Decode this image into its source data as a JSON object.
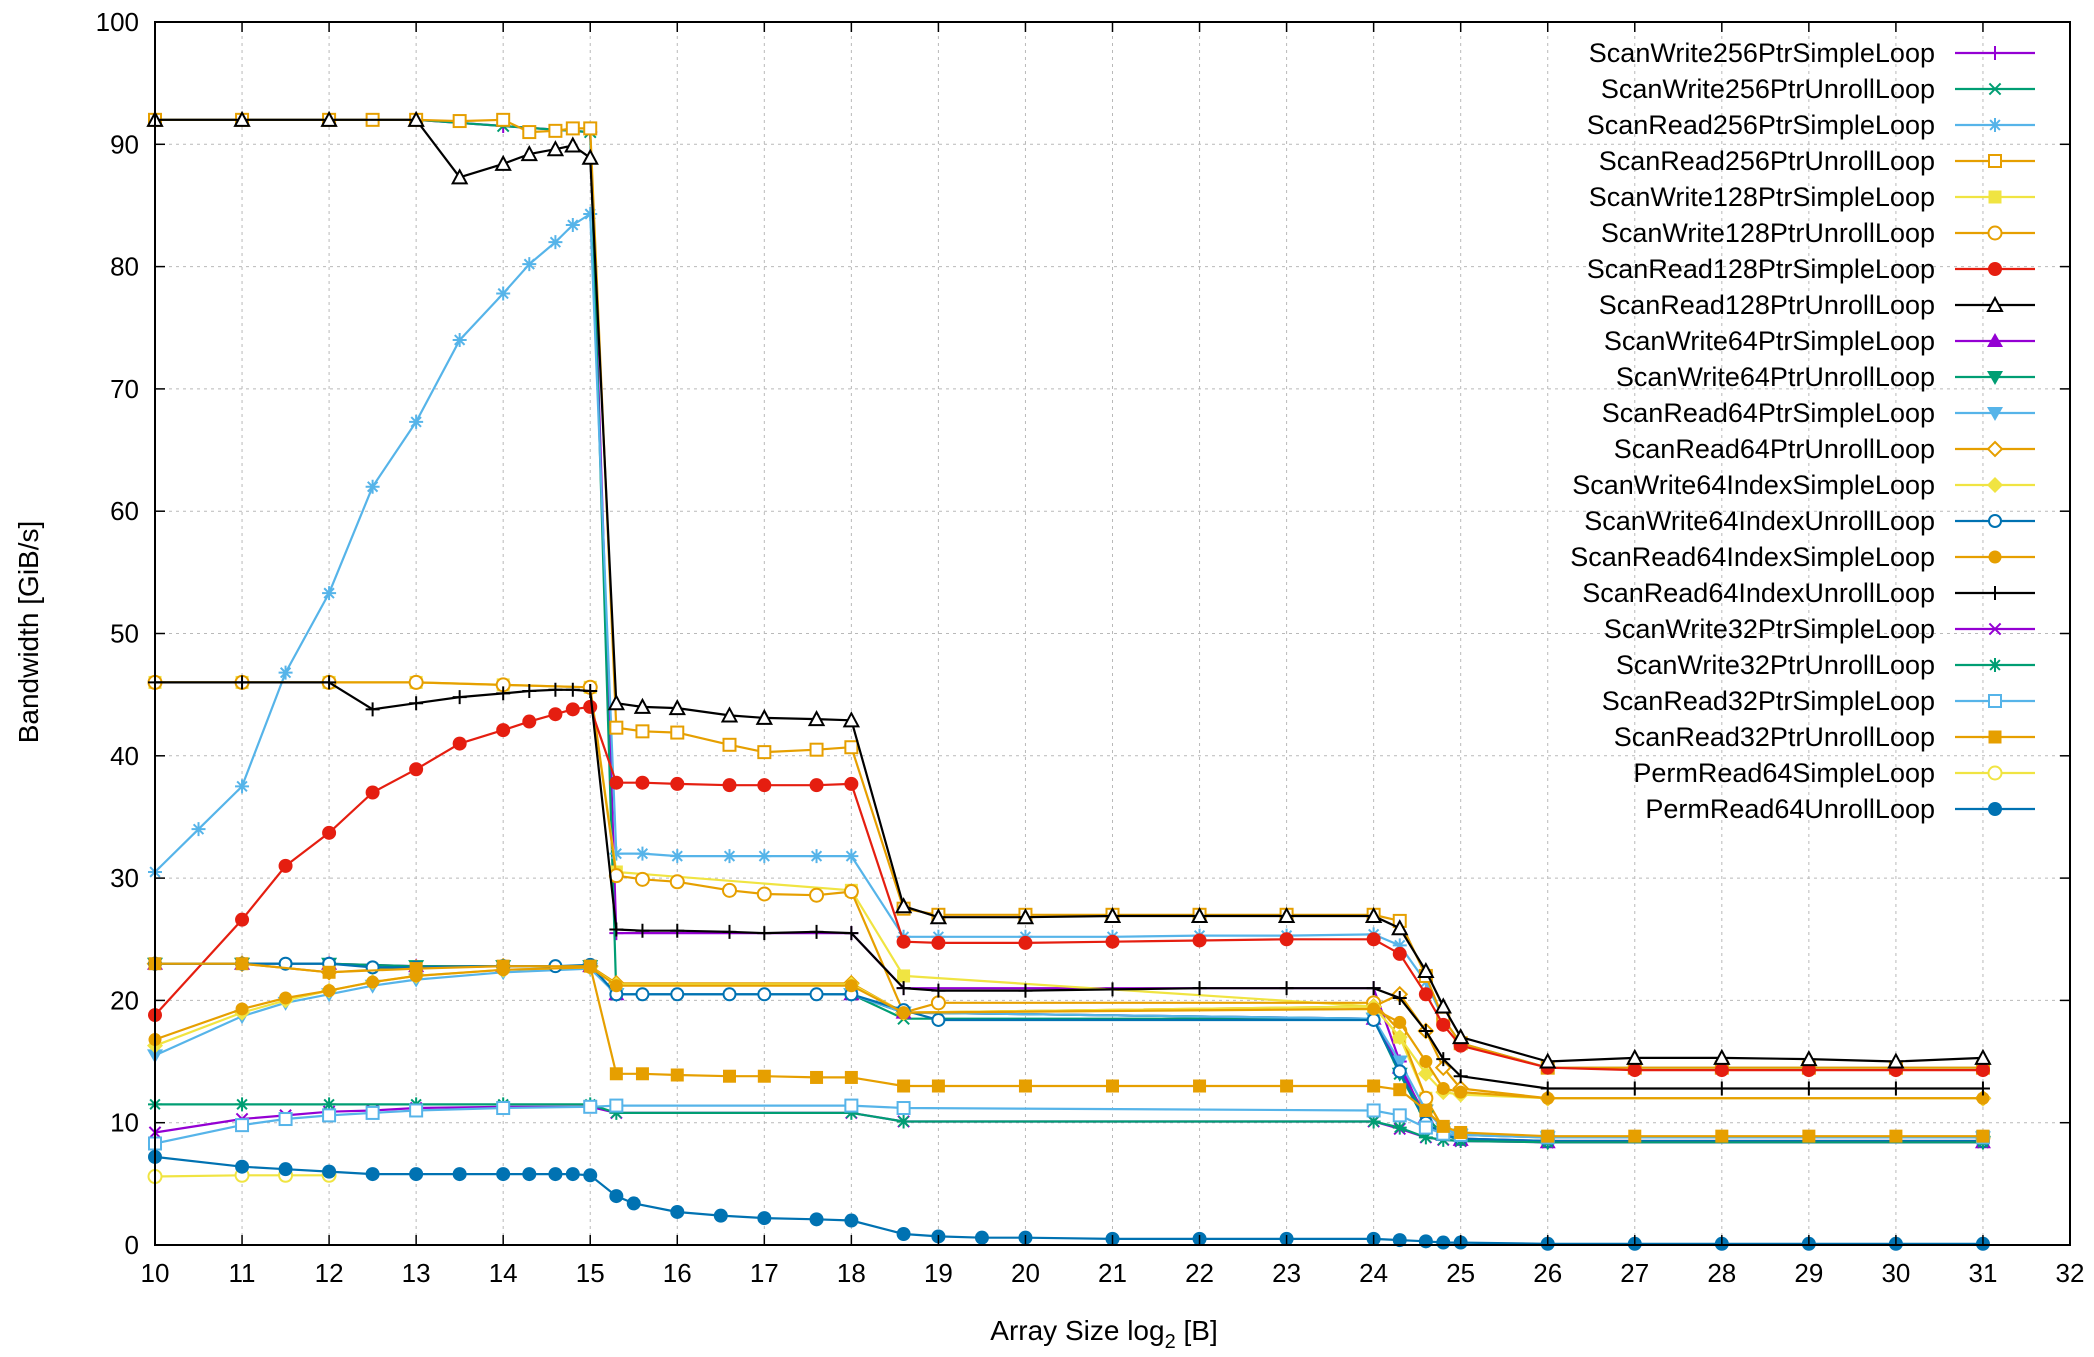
{
  "chart_data": {
    "type": "line",
    "title": "",
    "xlabel": "Array Size log",
    "xlabel_sub": "2",
    "xlabel_suffix": " [B]",
    "ylabel": "Bandwidth [GiB/s]",
    "xlim": [
      10,
      32
    ],
    "ylim": [
      0,
      100
    ],
    "xticks": [
      10,
      11,
      12,
      13,
      14,
      15,
      16,
      17,
      18,
      19,
      20,
      21,
      22,
      23,
      24,
      25,
      26,
      27,
      28,
      29,
      30,
      31,
      32
    ],
    "yticks": [
      0,
      10,
      20,
      30,
      40,
      50,
      60,
      70,
      80,
      90,
      100
    ],
    "grid": true,
    "legend_position": "top-right",
    "series": [
      {
        "name": "ScanWrite256PtrSimpleLoop",
        "color": "#9400d3",
        "marker": "plus",
        "x": [
          10,
          11,
          12,
          13,
          14,
          15,
          15.3,
          18,
          18.6,
          24,
          24.3,
          24.6,
          24.8,
          25,
          26,
          31
        ],
        "y": [
          92,
          92,
          92,
          92,
          91.5,
          91,
          25.5,
          25.5,
          21,
          21,
          15,
          10,
          9,
          8.7,
          8.5,
          8.5
        ]
      },
      {
        "name": "ScanWrite256PtrUnrollLoop",
        "color": "#009e73",
        "marker": "x",
        "x": [
          10,
          11,
          12,
          13,
          14,
          15,
          15.3,
          18,
          18.6,
          24,
          24.3,
          24.6,
          24.8,
          25,
          26,
          31
        ],
        "y": [
          92,
          92,
          92,
          92,
          91.5,
          91,
          20.5,
          20.5,
          18.5,
          18.5,
          14,
          10,
          9,
          8.6,
          8.4,
          8.4
        ]
      },
      {
        "name": "ScanRead256PtrSimpleLoop",
        "color": "#56b4e9",
        "marker": "star",
        "x": [
          10,
          10.5,
          11,
          11.5,
          12,
          12.5,
          13,
          13.5,
          14,
          14.3,
          14.6,
          14.8,
          15,
          15.3,
          15.6,
          16,
          16.6,
          17,
          17.6,
          18,
          18.6,
          19,
          20,
          21,
          22,
          23,
          24,
          24.3,
          24.6,
          24.8,
          25,
          26,
          27,
          28,
          29,
          30,
          31
        ],
        "y": [
          30.5,
          34,
          37.5,
          46.8,
          53.3,
          62,
          67.3,
          74,
          77.8,
          80.2,
          82,
          83.4,
          84.3,
          32,
          32,
          31.8,
          31.8,
          31.8,
          31.8,
          31.8,
          25.2,
          25.2,
          25.2,
          25.2,
          25.3,
          25.3,
          25.4,
          24.5,
          21.5,
          18.5,
          16.5,
          14.5,
          14.5,
          14.5,
          14.5,
          14.5,
          14.5
        ]
      },
      {
        "name": "ScanRead256PtrUnrollLoop",
        "color": "#e69f00",
        "marker": "square-open",
        "x": [
          10,
          11,
          12,
          12.5,
          13,
          13.5,
          14,
          14.3,
          14.6,
          14.8,
          15,
          15.3,
          15.6,
          16,
          16.6,
          17,
          17.6,
          18,
          18.6,
          19,
          20,
          21,
          22,
          23,
          24,
          24.3,
          24.6,
          24.8,
          25,
          26,
          27,
          28,
          29,
          30,
          31
        ],
        "y": [
          92,
          92,
          92,
          92,
          92,
          91.9,
          92,
          91,
          91.1,
          91.3,
          91.3,
          42.3,
          42,
          41.9,
          40.9,
          40.3,
          40.5,
          40.7,
          27.5,
          27,
          27,
          27,
          27,
          27,
          27,
          26.5,
          22,
          18.5,
          16.5,
          14.5,
          14.5,
          14.5,
          14.5,
          14.5,
          14.5
        ]
      },
      {
        "name": "ScanWrite128PtrSimpleLoop",
        "color": "#f0e442",
        "marker": "square-filled",
        "x": [
          10,
          11,
          12,
          13,
          14,
          15,
          15.3,
          18,
          18.6,
          24,
          24.3,
          24.6,
          24.8,
          25,
          26,
          31
        ],
        "y": [
          46,
          46,
          46,
          46,
          45.8,
          45.6,
          30.5,
          29,
          22,
          19.5,
          17,
          12,
          9.5,
          9,
          8.8,
          8.8
        ]
      },
      {
        "name": "ScanWrite128PtrUnrollLoop",
        "color": "#e69f00",
        "marker": "circle-open",
        "x": [
          10,
          11,
          12,
          13,
          14,
          15,
          15.3,
          15.6,
          16,
          16.6,
          17,
          17.6,
          18,
          18.6,
          19,
          24,
          24.3,
          24.6,
          24.8,
          25,
          26,
          31
        ],
        "y": [
          46,
          46,
          46,
          46,
          45.8,
          45.6,
          30.2,
          29.9,
          29.7,
          29,
          28.7,
          28.6,
          28.9,
          19,
          19.8,
          19.8,
          17.5,
          12,
          9.5,
          9,
          8.8,
          8.8
        ]
      },
      {
        "name": "ScanRead128PtrSimpleLoop",
        "color": "#e51e10",
        "marker": "circle-filled",
        "x": [
          10,
          11,
          11.5,
          12,
          12.5,
          13,
          13.5,
          14,
          14.3,
          14.6,
          14.8,
          15,
          15.3,
          15.6,
          16,
          16.6,
          17,
          17.6,
          18,
          18.6,
          19,
          20,
          21,
          22,
          23,
          24,
          24.3,
          24.6,
          24.8,
          25,
          26,
          27,
          28,
          29,
          30,
          31
        ],
        "y": [
          18.8,
          26.6,
          31,
          33.7,
          37,
          38.9,
          41,
          42.1,
          42.8,
          43.4,
          43.8,
          44,
          37.8,
          37.8,
          37.7,
          37.6,
          37.6,
          37.6,
          37.7,
          24.8,
          24.7,
          24.7,
          24.8,
          24.9,
          25,
          25,
          23.8,
          20.5,
          18,
          16.3,
          14.5,
          14.3,
          14.3,
          14.3,
          14.3,
          14.3
        ]
      },
      {
        "name": "ScanRead128PtrUnrollLoop",
        "color": "#000000",
        "marker": "triangle-open",
        "x": [
          10,
          11,
          12,
          13,
          13.5,
          14,
          14.3,
          14.6,
          14.8,
          15,
          15.3,
          15.6,
          16,
          16.6,
          17,
          17.6,
          18,
          18.6,
          19,
          20,
          21,
          22,
          23,
          24,
          24.3,
          24.6,
          24.8,
          25,
          26,
          27,
          28,
          29,
          30,
          31
        ],
        "y": [
          92,
          92,
          92,
          92,
          87.3,
          88.4,
          89.2,
          89.6,
          89.9,
          88.9,
          44.3,
          44,
          43.9,
          43.3,
          43.1,
          43,
          42.9,
          27.7,
          26.8,
          26.8,
          26.9,
          26.9,
          26.9,
          26.9,
          25.9,
          22.4,
          19.5,
          17,
          15,
          15.3,
          15.3,
          15.2,
          15,
          15.3
        ]
      },
      {
        "name": "ScanWrite64PtrSimpleLoop",
        "color": "#9400d3",
        "marker": "triangle-filled",
        "x": [
          10,
          11,
          12,
          13,
          14,
          15,
          15.3,
          18,
          18.6,
          24,
          24.3,
          24.6,
          24.8,
          25,
          26,
          31
        ],
        "y": [
          23,
          23,
          23,
          22.8,
          22.8,
          22.8,
          20.5,
          20.5,
          19,
          18.5,
          14.5,
          10.5,
          9,
          8.6,
          8.4,
          8.4
        ]
      },
      {
        "name": "ScanWrite64PtrUnrollLoop",
        "color": "#009e73",
        "marker": "triangle-down",
        "x": [
          10,
          11,
          12,
          13,
          14,
          15,
          15.3,
          18,
          18.6,
          24,
          24.3,
          24.6,
          24.8,
          25,
          26,
          31
        ],
        "y": [
          23,
          23,
          23,
          22.8,
          22.8,
          22.8,
          20.5,
          20.5,
          19,
          18.5,
          14,
          10.5,
          9,
          8.6,
          8.4,
          8.4
        ]
      },
      {
        "name": "ScanRead64PtrSimpleLoop",
        "color": "#56b4e9",
        "marker": "triangle-down",
        "x": [
          10,
          11,
          11.5,
          12,
          12.5,
          13,
          14,
          15,
          15.3,
          18,
          18.6,
          24,
          24.3,
          24.6,
          24.8,
          25,
          26,
          31
        ],
        "y": [
          15.5,
          18.7,
          19.8,
          20.5,
          21.2,
          21.7,
          22.3,
          22.6,
          20.5,
          20.5,
          19,
          18.5,
          15,
          11,
          9.5,
          9,
          8.8,
          8.8
        ]
      },
      {
        "name": "ScanRead64PtrUnrollLoop",
        "color": "#e69f00",
        "marker": "diamond-open",
        "x": [
          10,
          11,
          12,
          13,
          14,
          15,
          15.3,
          18,
          18.6,
          24,
          24.3,
          24.6,
          24.8,
          25,
          26,
          31
        ],
        "y": [
          23,
          23,
          22.3,
          22.7,
          22.8,
          22.8,
          21.4,
          21.4,
          19,
          19.5,
          20.5,
          17.5,
          14.5,
          12.8,
          12,
          12
        ]
      },
      {
        "name": "ScanWrite64IndexSimpleLoop",
        "color": "#f0e442",
        "marker": "diamond-filled",
        "x": [
          10,
          11,
          11.5,
          12,
          12.5,
          13,
          14,
          15,
          15.3,
          18,
          18.6,
          24,
          24.3,
          24.6,
          24.8,
          25,
          26,
          31
        ],
        "y": [
          16.3,
          19,
          20,
          20.8,
          21.5,
          22,
          22.5,
          22.7,
          21.3,
          21.3,
          19,
          19.5,
          17,
          14,
          12.5,
          12.3,
          12,
          12
        ]
      },
      {
        "name": "ScanWrite64IndexUnrollLoop",
        "color": "#0072b2",
        "marker": "pentagon-open",
        "x": [
          10,
          11,
          11.5,
          12,
          12.5,
          13,
          14,
          14.6,
          15,
          15.3,
          15.6,
          16,
          16.6,
          17,
          17.6,
          18,
          18.6,
          19,
          24,
          24.3,
          24.6,
          24.8,
          25,
          26,
          31
        ],
        "y": [
          23,
          23,
          23,
          23,
          22.7,
          22.7,
          22.8,
          22.8,
          22.9,
          20.5,
          20.5,
          20.5,
          20.5,
          20.5,
          20.5,
          20.5,
          19.2,
          18.4,
          18.4,
          14.2,
          10,
          9,
          8.7,
          8.5,
          8.5
        ]
      },
      {
        "name": "ScanRead64IndexSimpleLoop",
        "color": "#e69f00",
        "marker": "pentagon-filled",
        "x": [
          10,
          11,
          11.5,
          12,
          12.5,
          13,
          14,
          15,
          15.3,
          18,
          18.6,
          24,
          24.3,
          24.6,
          24.8,
          25,
          26,
          31
        ],
        "y": [
          16.8,
          19.3,
          20.2,
          20.8,
          21.5,
          22,
          22.5,
          22.7,
          21.2,
          21.2,
          19,
          19.3,
          18.2,
          15,
          12.8,
          12.5,
          12,
          12
        ]
      },
      {
        "name": "ScanRead64IndexUnrollLoop",
        "color": "#000000",
        "marker": "plus",
        "x": [
          10,
          11,
          12,
          12.5,
          13,
          13.5,
          14,
          14.3,
          14.6,
          14.8,
          15,
          15.3,
          15.6,
          16,
          16.6,
          17,
          17.6,
          18,
          18.6,
          19,
          20,
          21,
          22,
          23,
          24,
          24.3,
          24.6,
          24.8,
          25,
          26,
          27,
          28,
          29,
          30,
          31
        ],
        "y": [
          46,
          46,
          46,
          43.8,
          44.3,
          44.8,
          45.1,
          45.3,
          45.4,
          45.4,
          45.3,
          25.8,
          25.7,
          25.7,
          25.6,
          25.5,
          25.6,
          25.5,
          21,
          20.8,
          20.8,
          20.9,
          21,
          21,
          21,
          20.2,
          17.5,
          15.2,
          13.8,
          12.8,
          12.8,
          12.8,
          12.8,
          12.8,
          12.8
        ]
      },
      {
        "name": "ScanWrite32PtrSimpleLoop",
        "color": "#9400d3",
        "marker": "x",
        "x": [
          10,
          11,
          11.5,
          12,
          12.5,
          13,
          14,
          15,
          15.3,
          18,
          18.6,
          24,
          24.3,
          24.6,
          24.8,
          25,
          26,
          31
        ],
        "y": [
          9.2,
          10.3,
          10.6,
          10.9,
          11,
          11.2,
          11.3,
          11.3,
          10.8,
          10.8,
          10.1,
          10.1,
          9.5,
          8.8,
          8.6,
          8.5,
          8.4,
          8.4
        ]
      },
      {
        "name": "ScanWrite32PtrUnrollLoop",
        "color": "#009e73",
        "marker": "star",
        "x": [
          10,
          11,
          12,
          13,
          14,
          15,
          15.3,
          18,
          18.6,
          24,
          24.3,
          24.6,
          24.8,
          25,
          26,
          31
        ],
        "y": [
          11.5,
          11.5,
          11.5,
          11.5,
          11.5,
          11.5,
          10.8,
          10.8,
          10.1,
          10.1,
          9.6,
          8.8,
          8.6,
          8.5,
          8.4,
          8.4
        ]
      },
      {
        "name": "ScanRead32PtrSimpleLoop",
        "color": "#56b4e9",
        "marker": "square-open",
        "x": [
          10,
          11,
          11.5,
          12,
          12.5,
          13,
          14,
          15,
          15.3,
          18,
          18.6,
          24,
          24.3,
          24.6,
          24.8,
          25,
          26,
          31
        ],
        "y": [
          8.3,
          9.8,
          10.3,
          10.6,
          10.8,
          11,
          11.2,
          11.3,
          11.4,
          11.4,
          11.2,
          11,
          10.6,
          9.6,
          9.1,
          9,
          8.8,
          8.8
        ]
      },
      {
        "name": "ScanRead32PtrUnrollLoop",
        "color": "#e69f00",
        "marker": "square-filled",
        "x": [
          10,
          11,
          12,
          13,
          14,
          15,
          15.3,
          15.6,
          16,
          16.6,
          17,
          17.6,
          18,
          18.6,
          19,
          20,
          21,
          22,
          23,
          24,
          24.3,
          24.6,
          24.8,
          25,
          26,
          27,
          28,
          29,
          30,
          31
        ],
        "y": [
          23,
          23,
          22.3,
          22.6,
          22.8,
          22.8,
          14,
          14,
          13.9,
          13.8,
          13.8,
          13.7,
          13.7,
          13,
          13,
          13,
          13,
          13,
          13,
          13,
          12.7,
          11,
          9.7,
          9.2,
          8.9,
          8.9,
          8.9,
          8.9,
          8.9,
          8.9
        ]
      },
      {
        "name": "PermRead64SimpleLoop",
        "color": "#f0e442",
        "marker": "circle-open",
        "x": [
          10,
          11,
          11.5,
          12
        ],
        "y": [
          5.6,
          5.7,
          5.7,
          5.7
        ]
      },
      {
        "name": "PermRead64UnrollLoop",
        "color": "#0072b2",
        "marker": "circle-filled",
        "x": [
          10,
          11,
          11.5,
          12,
          12.5,
          13,
          13.5,
          14,
          14.3,
          14.6,
          14.8,
          15,
          15.3,
          15.5,
          16,
          16.5,
          17,
          17.6,
          18,
          18.6,
          19,
          19.5,
          20,
          21,
          22,
          23,
          24,
          24.3,
          24.6,
          24.8,
          25,
          26,
          27,
          28,
          29,
          30,
          31
        ],
        "y": [
          7.2,
          6.4,
          6.2,
          6,
          5.8,
          5.8,
          5.8,
          5.8,
          5.8,
          5.8,
          5.8,
          5.7,
          4,
          3.4,
          2.7,
          2.4,
          2.2,
          2.1,
          2,
          0.9,
          0.7,
          0.6,
          0.6,
          0.5,
          0.5,
          0.5,
          0.5,
          0.4,
          0.3,
          0.2,
          0.2,
          0.1,
          0.1,
          0.1,
          0.1,
          0.1,
          0.1
        ]
      }
    ]
  }
}
